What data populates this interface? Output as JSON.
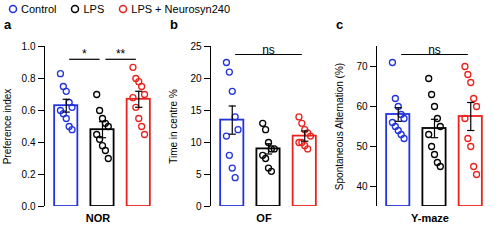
{
  "chart_data": [
    {
      "type": "bar",
      "title": "a",
      "xlabel": "NOR",
      "ylabel": "Preference index",
      "ylim": [
        0,
        1
      ],
      "yticks": [
        {
          "value": 0,
          "label": "0.0"
        },
        0.2,
        0.4,
        0.6,
        0.8,
        {
          "value": 1,
          "label": "1.0"
        }
      ],
      "tick_labels": "y",
      "legend": "top",
      "marker": "circle",
      "series": [
        {
          "name": "Control",
          "color": "#2233dd",
          "values": [
            0.63
          ],
          "error": [
            0.04
          ],
          "points": [
            0.83,
            0.75,
            0.72,
            0.65,
            0.62,
            0.6,
            0.58,
            0.55,
            0.5,
            0.48
          ]
        },
        {
          "name": "LPS",
          "color": "#000000",
          "values": [
            0.48
          ],
          "error": [
            0.05
          ],
          "points": [
            0.7,
            0.6,
            0.55,
            0.52,
            0.5,
            0.45,
            0.42,
            0.38,
            0.35,
            0.3
          ]
        },
        {
          "name": "LPS + Neurosyn240",
          "color": "#e8231e",
          "values": [
            0.67
          ],
          "error": [
            0.05
          ],
          "points": [
            0.87,
            0.8,
            0.78,
            0.75,
            0.7,
            0.68,
            0.62,
            0.55,
            0.5,
            0.45
          ]
        }
      ],
      "annotations": [
        {
          "text": "*",
          "from": "Control",
          "to": "LPS"
        },
        {
          "text": "**",
          "from": "LPS",
          "to": "LPS + Neurosyn240"
        }
      ]
    },
    {
      "type": "bar",
      "title": "b",
      "xlabel": "OF",
      "ylabel": "Time in centre %",
      "ylim": [
        0,
        25
      ],
      "yticks": [
        0,
        5,
        10,
        15,
        20,
        25
      ],
      "tick_labels": "y",
      "marker": "circle",
      "series": [
        {
          "name": "Control",
          "color": "#2233dd",
          "values": [
            13.5
          ],
          "error": [
            2.2
          ],
          "points": [
            22.5,
            21,
            18,
            14,
            12,
            11,
            8,
            6,
            4.5
          ]
        },
        {
          "name": "LPS",
          "color": "#000000",
          "values": [
            9
          ],
          "error": [
            0.8
          ],
          "points": [
            13,
            12,
            10,
            9,
            9,
            8,
            7.5,
            6,
            5.5
          ]
        },
        {
          "name": "LPS + Neurosyn240",
          "color": "#e8231e",
          "values": [
            11
          ],
          "error": [
            0.8
          ],
          "points": [
            14,
            13,
            12,
            11.5,
            11,
            10,
            10,
            9.5,
            9
          ]
        }
      ],
      "annotations": [
        {
          "text": "ns",
          "from": "Control",
          "to": "LPS + Neurosyn240"
        }
      ]
    },
    {
      "type": "bar",
      "title": "c",
      "xlabel": "Y-maze",
      "ylabel": "Spontaneous Alternation (%)",
      "ylim": [
        35,
        75
      ],
      "yticks": [
        40,
        50,
        60,
        70
      ],
      "tick_labels": "y",
      "marker": "circle",
      "series": [
        {
          "name": "Control",
          "color": "#2233dd",
          "values": [
            58
          ],
          "error": [
            1.7
          ],
          "points": [
            71,
            62,
            60,
            58,
            57,
            56,
            55,
            54,
            53,
            52
          ]
        },
        {
          "name": "LPS",
          "color": "#000000",
          "values": [
            54.5
          ],
          "error": [
            2.3
          ],
          "points": [
            67,
            63,
            60,
            57,
            55,
            53,
            50,
            48,
            46,
            45
          ]
        },
        {
          "name": "LPS + Neurosyn240",
          "color": "#e8231e",
          "values": [
            57.5
          ],
          "error": [
            3.5
          ],
          "points": [
            70,
            68,
            66,
            62,
            60,
            57,
            52,
            50,
            45,
            43
          ]
        }
      ],
      "annotations": [
        {
          "text": "ns",
          "from": "Control",
          "to": "LPS + Neurosyn240"
        }
      ]
    }
  ]
}
